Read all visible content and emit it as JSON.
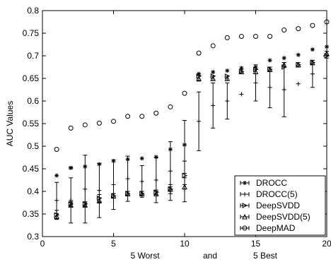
{
  "chart_data": {
    "type": "scatter",
    "title": "",
    "ylabel": "AUC Values",
    "xlabel_parts": [
      "5 Worst",
      "and",
      "5 Best"
    ],
    "xlim": [
      0,
      20
    ],
    "ylim": [
      0.3,
      0.8
    ],
    "xticks": [
      0,
      5,
      10,
      15,
      20
    ],
    "xtick_labels": [
      "0",
      "5",
      "10",
      "15",
      "20"
    ],
    "yticks": [
      0.3,
      0.35,
      0.4,
      0.45,
      0.5,
      0.55,
      0.6,
      0.65,
      0.7,
      0.75,
      0.8
    ],
    "ytick_labels": [
      "0.3",
      "0.35",
      "0.4",
      "0.45",
      "0.5",
      "0.55",
      "0.6",
      "0.65",
      "0.7",
      "0.75",
      "0.8"
    ],
    "grid": false,
    "legend_position": "bottom-right",
    "x": [
      1,
      2,
      3,
      4,
      5,
      6,
      7,
      8,
      9,
      10,
      11,
      12,
      13,
      14,
      15,
      16,
      17,
      18,
      19,
      20
    ],
    "series": [
      {
        "name": "DROCC",
        "marker": "asterisk",
        "values": [
          0.435,
          0.452,
          0.455,
          0.46,
          0.467,
          0.471,
          0.473,
          0.476,
          0.493,
          0.503,
          0.66,
          0.664,
          0.667,
          0.673,
          0.675,
          0.69,
          0.695,
          0.702,
          0.714,
          0.72
        ],
        "err": [
          0.0,
          0.002,
          0.0,
          0.0,
          0.0,
          0.0,
          0.0,
          0.0,
          0.0,
          0.0,
          0.0,
          0.0,
          0.0,
          0.0,
          0.0,
          0.0,
          0.0,
          0.0,
          0.0,
          0.0
        ]
      },
      {
        "name": "DROCC(5)",
        "marker": "plus",
        "values": [
          0.38,
          0.38,
          0.405,
          0.402,
          0.415,
          0.428,
          0.422,
          0.425,
          0.445,
          0.467,
          0.555,
          0.59,
          0.6,
          0.615,
          0.64,
          0.63,
          0.625,
          0.638,
          0.66,
          0.695
        ],
        "err": [
          0.04,
          0.05,
          0.075,
          0.06,
          0.055,
          0.05,
          0.035,
          0.05,
          0.065,
          0.09,
          0.065,
          0.05,
          0.04,
          0.0,
          0.04,
          0.045,
          0.06,
          0.0,
          0.03,
          0.0
        ]
      },
      {
        "name": "DeepSVDD",
        "marker": "triangle-right",
        "values": [
          0.348,
          0.372,
          0.372,
          0.385,
          0.39,
          0.395,
          0.395,
          0.398,
          0.405,
          0.435,
          0.655,
          0.655,
          0.655,
          0.665,
          0.67,
          0.67,
          0.675,
          0.68,
          0.685,
          0.7
        ],
        "err": [
          0.01,
          0.005,
          0.005,
          0.008,
          0.005,
          0.005,
          0.005,
          0.005,
          0.01,
          0.005,
          0.0,
          0.0,
          0.0,
          0.0,
          0.0,
          0.0,
          0.0,
          0.0,
          0.0,
          0.0
        ]
      },
      {
        "name": "DeepSVDD(5)",
        "marker": "triangle-up",
        "values": [
          0.345,
          0.37,
          0.37,
          0.38,
          0.39,
          0.395,
          0.395,
          0.395,
          0.405,
          0.41,
          0.65,
          0.65,
          0.65,
          0.665,
          0.665,
          0.67,
          0.68,
          0.68,
          0.685,
          0.705
        ],
        "err": [
          0.006,
          0.005,
          0.005,
          0.006,
          0.005,
          0.005,
          0.005,
          0.005,
          0.005,
          0.005,
          0.006,
          0.005,
          0.005,
          0.005,
          0.005,
          0.005,
          0.005,
          0.005,
          0.005,
          0.005
        ]
      },
      {
        "name": "DeepMAD",
        "marker": "circle",
        "values": [
          0.493,
          0.54,
          0.547,
          0.551,
          0.555,
          0.566,
          0.566,
          0.573,
          0.587,
          0.617,
          0.706,
          0.722,
          0.74,
          0.743,
          0.743,
          0.743,
          0.757,
          0.76,
          0.767,
          0.775
        ],
        "err": [
          0.0,
          0.0,
          0.0,
          0.0,
          0.0,
          0.0,
          0.0,
          0.0,
          0.0,
          0.0,
          0.0,
          0.0,
          0.0,
          0.0,
          0.0,
          0.0,
          0.0,
          0.0,
          0.0,
          0.0
        ]
      }
    ]
  }
}
